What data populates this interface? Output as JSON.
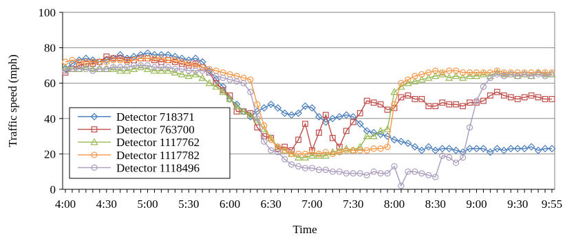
{
  "chart_data": {
    "type": "line",
    "title": "",
    "xlabel": "Time",
    "ylabel": "Traffic speed (mph)",
    "ylim": [
      0,
      100
    ],
    "y_ticks": [
      "0",
      "20",
      "40",
      "60",
      "80",
      "100"
    ],
    "x_range": [
      "4:00",
      "9:55"
    ],
    "x_ticks": [
      "4:00",
      "4:30",
      "5:00",
      "5:30",
      "6:00",
      "6:30",
      "7:00",
      "7:30",
      "8:00",
      "8:30",
      "9:00",
      "9:30",
      "9:55"
    ],
    "x_interval_minutes": 5,
    "grid": "horizontal",
    "legend_position": "bottom-left",
    "series": [
      {
        "name": "Detector 718371",
        "color": "#4a7ebb",
        "marker": "diamond",
        "values": [
          68,
          71,
          73,
          74,
          73,
          72,
          73,
          74,
          76,
          74,
          75,
          76,
          77,
          76,
          76,
          76,
          75,
          74,
          73,
          74,
          72,
          67,
          62,
          58,
          51,
          48,
          44,
          41,
          44,
          46,
          48,
          46,
          43,
          42,
          43,
          47,
          46,
          41,
          38,
          40,
          41,
          42,
          41,
          37,
          33,
          32,
          31,
          30,
          28,
          27,
          26,
          24,
          22,
          24,
          22,
          23,
          23,
          22,
          21,
          23,
          23,
          23,
          21,
          23,
          22,
          23,
          23,
          23,
          24,
          22,
          23,
          23
        ]
      },
      {
        "name": "Detector 763700",
        "color": "#be4b48",
        "marker": "square",
        "values": [
          66,
          68,
          70,
          71,
          71,
          72,
          75,
          74,
          74,
          73,
          73,
          74,
          74,
          73,
          72,
          73,
          72,
          71,
          70,
          71,
          69,
          66,
          60,
          56,
          53,
          44,
          44,
          43,
          35,
          30,
          29,
          23,
          24,
          22,
          28,
          37,
          22,
          32,
          42,
          29,
          24,
          33,
          38,
          43,
          50,
          49,
          48,
          45,
          46,
          52,
          53,
          51,
          51,
          47,
          47,
          49,
          48,
          48,
          47,
          49,
          49,
          50,
          53,
          55,
          53,
          52,
          51,
          52,
          53,
          52,
          51,
          51
        ]
      },
      {
        "name": "Detector 1117762",
        "color": "#98b954",
        "marker": "triangle",
        "values": [
          69,
          68,
          68,
          69,
          68,
          68,
          68,
          68,
          67,
          67,
          68,
          69,
          68,
          67,
          67,
          67,
          66,
          65,
          64,
          65,
          63,
          60,
          58,
          55,
          51,
          47,
          44,
          42,
          39,
          34,
          29,
          24,
          22,
          20,
          18,
          18,
          19,
          19,
          19,
          21,
          22,
          23,
          22,
          24,
          30,
          30,
          33,
          34,
          55,
          58,
          60,
          61,
          62,
          63,
          64,
          65,
          63,
          64,
          63,
          64,
          64,
          65,
          64,
          66,
          65,
          65,
          64,
          65,
          64,
          66,
          65,
          65
        ]
      },
      {
        "name": "Detector 1117782",
        "color": "#f79646",
        "marker": "circle",
        "values": [
          72,
          73,
          72,
          72,
          72,
          72,
          72,
          73,
          73,
          72,
          73,
          74,
          74,
          74,
          74,
          73,
          73,
          72,
          71,
          70,
          69,
          68,
          67,
          66,
          65,
          64,
          63,
          62,
          48,
          36,
          28,
          24,
          22,
          20,
          20,
          20,
          21,
          20,
          21,
          20,
          21,
          22,
          22,
          22,
          22,
          23,
          23,
          24,
          48,
          60,
          62,
          64,
          65,
          66,
          67,
          66,
          67,
          67,
          66,
          66,
          66,
          66,
          66,
          67,
          66,
          66,
          66,
          66,
          66,
          66,
          66,
          66
        ]
      },
      {
        "name": "Detector 1118496",
        "color": "#a99bbd",
        "marker": "circle",
        "values": [
          67,
          68,
          68,
          68,
          67,
          68,
          68,
          69,
          69,
          69,
          70,
          70,
          70,
          69,
          69,
          69,
          68,
          68,
          67,
          67,
          67,
          66,
          64,
          63,
          62,
          61,
          60,
          55,
          40,
          27,
          22,
          21,
          17,
          14,
          13,
          12,
          12,
          11,
          11,
          10,
          10,
          9,
          9,
          9,
          8,
          10,
          9,
          9,
          13,
          2,
          10,
          10,
          9,
          8,
          7,
          19,
          18,
          15,
          18,
          35,
          50,
          58,
          63,
          65,
          64,
          65,
          64,
          65,
          64,
          65,
          64,
          65
        ]
      }
    ]
  }
}
